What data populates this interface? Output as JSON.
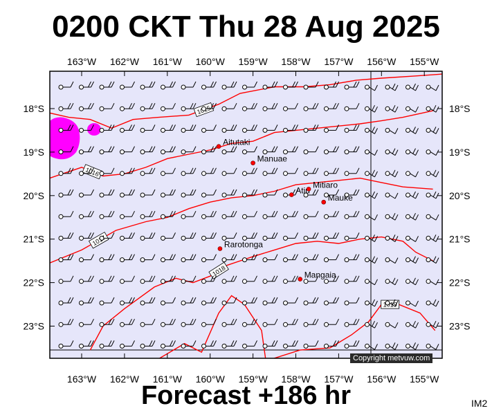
{
  "header": {
    "title": "0200 CKT Thu 28 Aug 2025"
  },
  "footer": {
    "forecast": "Forecast +186 hr",
    "model": "IM2",
    "copyright": "Copyright metvuw.com"
  },
  "map": {
    "lon_labels": [
      "163°W",
      "162°W",
      "161°W",
      "160°W",
      "159°W",
      "158°W",
      "157°W",
      "156°W",
      "155°W"
    ],
    "lat_labels": [
      "18°S",
      "19°S",
      "20°S",
      "21°S",
      "22°S",
      "23°S"
    ],
    "colors": {
      "background": "#e6e6fa",
      "isobar": "#ff0000",
      "land": "#ff0000",
      "rain": "#ff00ff",
      "wind": "#000000"
    },
    "places": [
      {
        "name": "Aitutaki",
        "lon": -159.8,
        "lat": -18.87
      },
      {
        "name": "Manuae",
        "lon": -159.0,
        "lat": -19.25
      },
      {
        "name": "Atiu",
        "lon": -158.1,
        "lat": -19.98
      },
      {
        "name": "Mitiaro",
        "lon": -157.7,
        "lat": -19.85
      },
      {
        "name": "Mauke",
        "lon": -157.35,
        "lat": -20.15
      },
      {
        "name": "Rarotonga",
        "lon": -159.77,
        "lat": -21.22
      },
      {
        "name": "Mangaia",
        "lon": -157.9,
        "lat": -21.92
      }
    ],
    "isobars": [
      {
        "label": "1015",
        "points": [
          [
            -163.75,
            -18.1
          ],
          [
            -163.3,
            -18.2
          ],
          [
            -162.8,
            -18.25
          ],
          [
            -162.3,
            -18.45
          ],
          [
            -161.8,
            -18.25
          ],
          [
            -161.2,
            -18.2
          ],
          [
            -160.5,
            -18.15
          ],
          [
            -159.8,
            -17.9
          ],
          [
            -159.3,
            -17.65
          ],
          [
            -158.5,
            -17.5
          ],
          [
            -157.8,
            -17.5
          ],
          [
            -157.2,
            -17.45
          ],
          [
            -156.6,
            -17.35
          ],
          [
            -156.0,
            -17.3
          ],
          [
            -155.2,
            -17.25
          ],
          [
            -154.5,
            -17.2
          ]
        ]
      },
      {
        "label": "1016",
        "points": [
          [
            -163.75,
            -19.6
          ],
          [
            -163.0,
            -19.35
          ],
          [
            -162.5,
            -19.55
          ],
          [
            -162.0,
            -19.5
          ],
          [
            -161.5,
            -19.35
          ],
          [
            -161.0,
            -19.15
          ],
          [
            -160.5,
            -19.05
          ],
          [
            -160.0,
            -18.95
          ],
          [
            -159.5,
            -18.8
          ],
          [
            -159.0,
            -18.75
          ],
          [
            -158.5,
            -18.55
          ],
          [
            -158.0,
            -18.5
          ],
          [
            -157.5,
            -18.45
          ],
          [
            -157.0,
            -18.4
          ],
          [
            -156.5,
            -18.35
          ],
          [
            -156.0,
            -18.28
          ],
          [
            -155.5,
            -18.2
          ],
          [
            -154.8,
            -18.05
          ]
        ]
      },
      {
        "label": "1017",
        "points": [
          [
            -163.75,
            -21.55
          ],
          [
            -163.0,
            -21.25
          ],
          [
            -162.2,
            -20.8
          ],
          [
            -161.5,
            -20.6
          ],
          [
            -161.0,
            -20.5
          ],
          [
            -160.5,
            -20.3
          ],
          [
            -160.0,
            -20.15
          ],
          [
            -159.5,
            -20.05
          ],
          [
            -159.0,
            -20.0
          ],
          [
            -158.5,
            -19.9
          ],
          [
            -158.0,
            -19.75
          ],
          [
            -157.5,
            -19.7
          ],
          [
            -157.0,
            -19.65
          ],
          [
            -156.5,
            -19.6
          ],
          [
            -156.0,
            -19.7
          ],
          [
            -155.5,
            -19.8
          ],
          [
            -154.8,
            -19.85
          ]
        ]
      },
      {
        "label": "1018",
        "points": [
          [
            -162.8,
            -23.55
          ],
          [
            -162.5,
            -23.0
          ],
          [
            -162.0,
            -22.6
          ],
          [
            -161.3,
            -22.1
          ],
          [
            -160.8,
            -21.9
          ],
          [
            -160.4,
            -22.0
          ],
          [
            -160.0,
            -21.85
          ],
          [
            -159.6,
            -21.6
          ],
          [
            -159.0,
            -21.4
          ],
          [
            -158.5,
            -21.25
          ],
          [
            -158.0,
            -21.1
          ],
          [
            -157.5,
            -21.05
          ],
          [
            -157.0,
            -21.1
          ],
          [
            -156.5,
            -21.0
          ],
          [
            -156.0,
            -20.95
          ],
          [
            -155.5,
            -21.05
          ],
          [
            -155.2,
            -21.3
          ],
          [
            -154.8,
            -21.5
          ]
        ]
      },
      {
        "label": "1019",
        "points": [
          [
            -161.2,
            -23.75
          ],
          [
            -160.6,
            -23.4
          ],
          [
            -160.2,
            -23.6
          ],
          [
            -159.8,
            -22.7
          ],
          [
            -159.5,
            -22.3
          ],
          [
            -159.2,
            -22.5
          ],
          [
            -158.8,
            -23.1
          ],
          [
            -158.7,
            -23.8
          ],
          [
            -157.9,
            -23.55
          ],
          [
            -157.2,
            -23.5
          ],
          [
            -156.7,
            -23.2
          ],
          [
            -156.3,
            -22.9
          ],
          [
            -156.0,
            -22.5
          ],
          [
            -155.6,
            -22.5
          ],
          [
            -155.1,
            -22.7
          ],
          [
            -154.75,
            -23.1
          ]
        ]
      }
    ]
  }
}
